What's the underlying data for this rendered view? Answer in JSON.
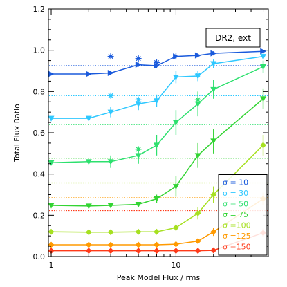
{
  "chart_data": {
    "type": "line",
    "title": "",
    "xlabel": "Peak Model Flux / rms",
    "ylabel": "Total Flux Ratio",
    "x_scale": "log",
    "xlim": [
      0.95,
      55
    ],
    "ylim": [
      0,
      1.2
    ],
    "x_ticks": [
      1,
      10
    ],
    "x_tick_labels": [
      "1",
      "10"
    ],
    "y_ticks": [
      0.0,
      0.2,
      0.4,
      0.6,
      0.8,
      1.0,
      1.2
    ],
    "y_tick_labels": [
      "0.0",
      "0.2",
      "0.4",
      "0.6",
      "0.8",
      "1.0",
      "1.2"
    ],
    "annotation_box": "DR2, ext",
    "legend_position": "bottom-right",
    "x": [
      1,
      2,
      3,
      5,
      7,
      10,
      15,
      20,
      50
    ],
    "series": [
      {
        "name": "σ = 10",
        "color": "#1a5adc",
        "marker": "triangle-right",
        "values": [
          0.885,
          0.885,
          0.89,
          0.93,
          0.925,
          0.97,
          0.975,
          0.985,
          0.995
        ],
        "err": [
          0,
          0,
          0.01,
          0.01,
          0.01,
          0.015,
          0.01,
          0.01,
          0.005
        ],
        "reference": 0.925,
        "stars": [
          {
            "x": 3,
            "y": 0.97
          },
          {
            "x": 5,
            "y": 0.96
          },
          {
            "x": 7,
            "y": 0.94
          }
        ]
      },
      {
        "name": "σ = 30",
        "color": "#2ec8ff",
        "marker": "triangle-down",
        "values": [
          0.67,
          0.67,
          0.7,
          0.74,
          0.755,
          0.87,
          0.875,
          0.935,
          0.97
        ],
        "err": [
          0.01,
          0.01,
          0.025,
          0.03,
          0.03,
          0.03,
          0.025,
          0.02,
          0.015
        ],
        "reference": 0.78,
        "stars": [
          {
            "x": 3,
            "y": 0.78
          },
          {
            "x": 5,
            "y": 0.76
          },
          {
            "x": 15,
            "y": 0.88
          }
        ]
      },
      {
        "name": "σ = 50",
        "color": "#2de06e",
        "marker": "triangle-down",
        "values": [
          0.455,
          0.46,
          0.46,
          0.49,
          0.54,
          0.65,
          0.74,
          0.81,
          0.92
        ],
        "err": [
          0.01,
          0.01,
          0.03,
          0.04,
          0.05,
          0.06,
          0.06,
          0.045,
          0.03
        ],
        "reference": 0.64,
        "stars": [
          {
            "x": 5,
            "y": 0.52
          },
          {
            "x": 15,
            "y": 0.76
          }
        ]
      },
      {
        "name": "σ = 75",
        "color": "#33d433",
        "marker": "triangle-down",
        "values": [
          0.248,
          0.245,
          0.248,
          0.253,
          0.28,
          0.34,
          0.49,
          0.56,
          0.765
        ],
        "err": [
          0.01,
          0.005,
          0.01,
          0.01,
          0.02,
          0.05,
          0.06,
          0.06,
          0.05
        ],
        "reference": 0.477,
        "stars": []
      },
      {
        "name": "σ =100",
        "color": "#a6e020",
        "marker": "diamond",
        "values": [
          0.12,
          0.118,
          0.118,
          0.12,
          0.12,
          0.14,
          0.21,
          0.3,
          0.54
        ],
        "err": [
          0.005,
          0.005,
          0.005,
          0.005,
          0.01,
          0.015,
          0.03,
          0.04,
          0.05
        ],
        "reference": 0.357,
        "stars": []
      },
      {
        "name": "σ =125",
        "color": "#ff9a00",
        "marker": "diamond",
        "values": [
          0.057,
          0.057,
          0.057,
          0.057,
          0.057,
          0.06,
          0.075,
          0.12,
          0.28
        ],
        "err": [
          0.003,
          0.003,
          0.003,
          0.003,
          0.003,
          0.005,
          0.01,
          0.02,
          0.03
        ],
        "reference": 0.285,
        "stars": []
      },
      {
        "name": "σ =150",
        "color": "#ff3b1a",
        "marker": "diamond",
        "values": [
          0.028,
          0.028,
          0.028,
          0.028,
          0.028,
          0.028,
          0.028,
          0.03,
          0.115
        ],
        "err": [
          0.002,
          0.002,
          0.002,
          0.002,
          0.002,
          0.002,
          0.002,
          0.005,
          0.02
        ],
        "reference": 0.223,
        "stars": []
      }
    ]
  }
}
